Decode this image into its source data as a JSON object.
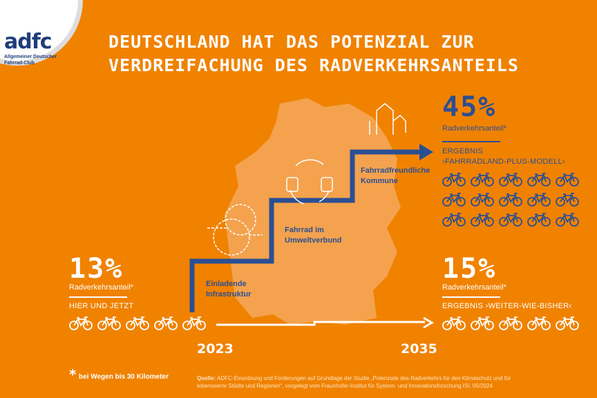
{
  "logo": {
    "word": "adfc",
    "sub1": "Allgemeiner Deutscher",
    "sub2": "Fahrrad-Club"
  },
  "title": {
    "line1": "DEUTSCHLAND HAT DAS POTENZIAL ZUR",
    "line2": "VERDREIFACHUNG DES RADVERKEHRSANTEILS"
  },
  "current": {
    "value": "13%",
    "label": "Radverkehrsanteil*",
    "caption": "HIER UND JETZT",
    "bikes": 5
  },
  "plus": {
    "value": "45%",
    "label": "Radverkehrsanteil*",
    "caption1": "ERGEBNIS",
    "caption2": "›FAHRRADLAND-PLUS-MODELL‹",
    "bikes": 15
  },
  "base": {
    "value": "15%",
    "label": "Radverkehrsanteil*",
    "caption": "ERGEBNIS ›WEITER-WIE-BISHER‹",
    "bikes": 5
  },
  "steps": [
    {
      "line1": "Einladende",
      "line2": "Infrastruktur"
    },
    {
      "line1": "Fahrrad im",
      "line2": "Umweltverbund"
    },
    {
      "line1": "Fahrradfreundliche",
      "line2": "Kommune"
    }
  ],
  "timeline": {
    "start": "2023",
    "end": "2035"
  },
  "footnote": {
    "star": "*",
    "text": "bei Wegen bis 30 Kilometer"
  },
  "source": {
    "label": "Quelle:",
    "line1": " ADFC-Einordnung und Forderungen auf Grundlage der Studie „Potenziale des Radverkehrs für den Klimaschutz und für",
    "line2": "lebenswerte Städte und Regionen“, vorgelegt vom Fraunhofer-Institut für System- und Innovationsforschung ISI, 05/2024"
  },
  "colors": {
    "background": "#F08200",
    "accent": "#2A4F94",
    "map": "#F4A24E"
  }
}
